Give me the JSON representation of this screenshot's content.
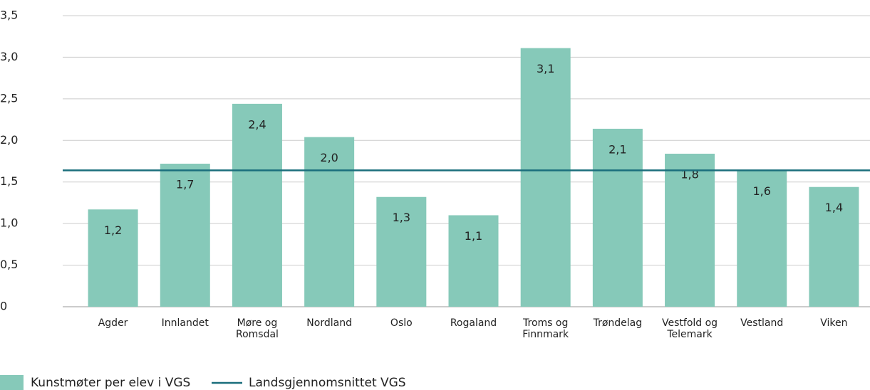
{
  "chart_data": {
    "type": "bar",
    "categories": [
      "Agder",
      "Innlandet",
      "Møre og Romsdal",
      "Nordland",
      "Oslo",
      "Rogaland",
      "Troms og Finnmark",
      "Trøndelag",
      "Vestfold og Telemark",
      "Vestland",
      "Viken"
    ],
    "series": [
      {
        "name": "Kunstmøter per elev i VGS",
        "color": "#86c9b9",
        "values": [
          1.17,
          1.72,
          2.44,
          2.04,
          1.32,
          1.1,
          3.11,
          2.14,
          1.84,
          1.64,
          1.44
        ],
        "value_labels": [
          "1,2",
          "1,7",
          "2,4",
          "2,0",
          "1,3",
          "1,1",
          "3,1",
          "2,1",
          "1,8",
          "1,6",
          "1,4"
        ]
      }
    ],
    "reference_line": {
      "name": "Landsgjennomsnittet VGS",
      "color": "#1a6e7c",
      "value": 1.64
    },
    "ylim": [
      0,
      3.5
    ],
    "yticks": [
      0,
      {
        "value": 0.5,
        "label": "0,5"
      },
      {
        "value": 1,
        "label": "1,0"
      },
      {
        "value": 1.5,
        "label": "1,5"
      },
      {
        "value": 2,
        "label": "2,0"
      },
      {
        "value": 2.5,
        "label": "2,5"
      },
      {
        "value": 3,
        "label": "3,0"
      },
      {
        "value": 3.5,
        "label": "3,5"
      }
    ],
    "grid": true
  }
}
